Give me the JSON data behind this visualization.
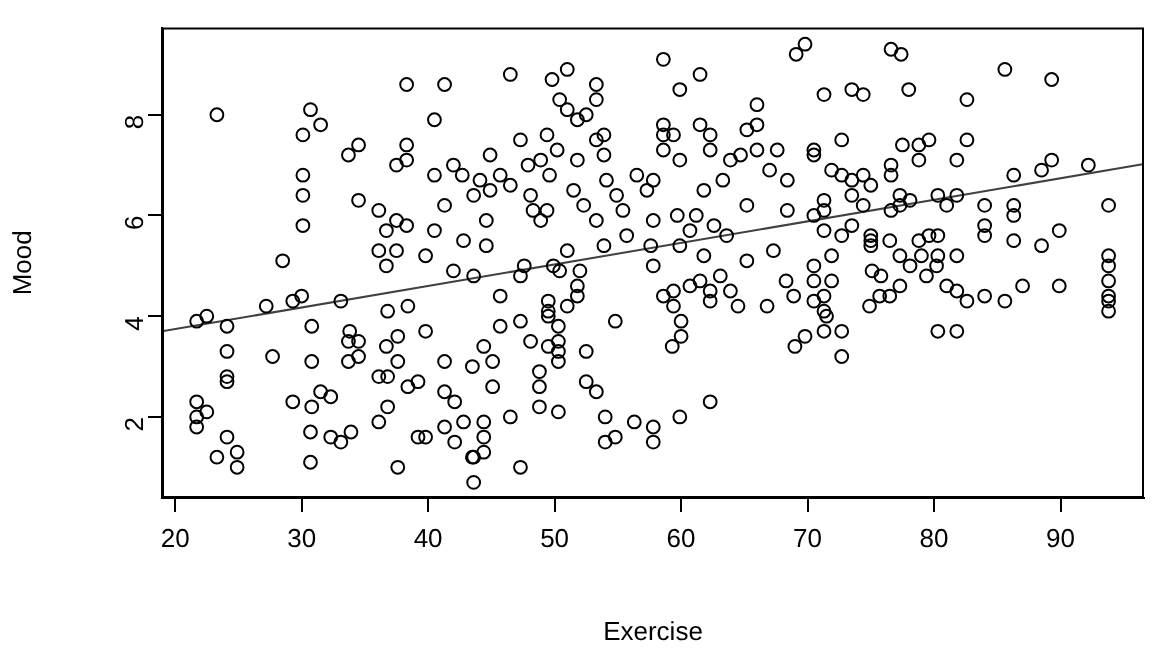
{
  "chart_data": {
    "type": "scatter",
    "xlabel": "Exercise",
    "ylabel": "Mood",
    "xlim": [
      18.96,
      96.6
    ],
    "ylim": [
      0.39,
      9.73
    ],
    "xticks": [
      20,
      30,
      40,
      50,
      60,
      70,
      80,
      90
    ],
    "yticks": [
      2,
      4,
      6,
      8
    ],
    "grid": false,
    "legend": false,
    "marker": "circle",
    "series": [
      {
        "color": "#000000",
        "x": [
          23.3,
          21.7,
          21.7,
          21.7,
          22.5,
          21.7,
          22.5,
          24.1,
          24.1,
          24.1,
          24.1,
          24.1,
          23.3,
          24.9,
          24.9,
          27.2,
          27.7,
          29.3,
          30.0,
          30.8,
          30.8,
          29.3,
          30.8,
          31.5,
          32.3,
          30.7,
          30.7,
          32.3,
          33.1,
          33.9,
          33.1,
          33.8,
          33.7,
          34.5,
          33.7,
          34.5,
          36.1,
          36.8,
          36.7,
          36.8,
          37.6,
          37.6,
          38.4,
          39.8,
          36.1,
          36.8,
          37.6,
          38.4,
          39.2,
          39.2,
          39.8,
          41.3,
          41.3,
          42.1,
          41.3,
          42.1,
          42.8,
          43.6,
          43.6,
          38.3,
          41.3,
          30.7,
          31.5,
          30.1,
          34.5,
          33.7,
          38.3,
          38.3,
          37.5,
          40.5,
          30.1,
          30.1,
          30.1,
          34.5,
          36.1,
          37.5,
          38.3,
          36.7,
          40.5,
          41.3,
          40.5,
          42.0,
          42.7,
          36.1,
          37.5,
          36.7,
          39.8,
          28.5,
          42.8,
          43.6,
          42.0,
          69.8,
          69.1,
          58.6,
          51.0,
          49.8,
          46.5,
          61.5,
          59.9,
          53.3,
          53.3,
          50.4,
          51.0,
          52.5,
          51.8,
          66.0,
          66.0,
          65.2,
          58.6,
          58.6,
          59.4,
          61.5,
          62.3,
          62.3,
          53.9,
          53.3,
          47.3,
          49.4,
          50.2,
          44.9,
          48.9,
          47.9,
          51.8,
          53.9,
          59.9,
          58.6,
          63.9,
          64.7,
          66.0,
          67.6,
          70.5,
          45.7,
          44.1,
          46.5,
          49.6,
          54.1,
          56.5,
          57.8,
          57.3,
          61.8,
          63.3,
          68.4,
          67.0,
          44.9,
          48.1,
          51.5,
          54.9,
          48.3,
          49.4,
          52.3,
          55.4,
          59.7,
          61.2,
          65.2,
          68.4,
          48.9,
          44.6,
          53.3,
          57.8,
          55.7,
          60.7,
          62.6,
          63.6,
          44.6,
          53.9,
          51.0,
          57.6,
          59.9,
          61.8,
          65.2,
          67.3,
          47.6,
          49.9,
          57.8,
          52.0,
          76.6,
          77.4,
          85.6,
          89.3,
          71.3,
          73.5,
          74.4,
          78.0,
          82.6,
          72.7,
          77.5,
          78.8,
          79.6,
          82.6,
          70.5,
          71.9,
          72.7,
          73.5,
          74.4,
          75.0,
          76.6,
          76.6,
          78.8,
          81.8,
          86.3,
          88.5,
          89.3,
          92.2,
          71.3,
          73.5,
          77.3,
          78.1,
          80.3,
          81.8,
          70.5,
          71.3,
          74.4,
          76.6,
          77.3,
          81.0,
          84.0,
          86.3,
          86.3,
          93.8,
          71.3,
          72.7,
          73.5,
          75.0,
          75.0,
          75.0,
          76.5,
          78.8,
          79.6,
          80.3,
          84.0,
          84.0,
          86.3,
          88.5,
          89.9,
          93.8,
          93.8,
          70.5,
          71.9,
          77.3,
          79.0,
          80.3,
          81.8,
          75.1,
          75.8,
          74.9,
          75.7,
          76.5,
          77.3,
          78.1,
          79.4,
          80.2,
          81.0,
          81.8,
          82.6,
          84.0,
          85.6,
          87.0,
          89.9,
          80.3,
          81.8,
          93.8,
          93.8,
          93.8,
          93.8,
          70.5,
          71.5,
          71.3,
          71.3,
          72.7,
          72.7,
          71.3,
          70.5,
          71.9,
          69.8,
          43.5,
          44.4,
          45.1,
          45.1,
          45.7,
          45.7,
          47.3,
          48.1,
          48.8,
          48.8,
          48.8,
          49.5,
          49.5,
          49.5,
          49.5,
          50.3,
          50.3,
          50.3,
          50.3,
          50.3,
          51.0,
          51.8,
          51.8,
          52.5,
          52.5,
          53.3,
          54.0,
          54.0,
          54.8,
          54.8,
          56.3,
          57.8,
          57.8,
          59.9,
          62.3,
          43.5,
          44.4,
          44.4,
          44.4,
          47.3,
          46.5,
          58.6,
          59.4,
          59.4,
          60.0,
          60.0,
          59.3,
          60.7,
          61.5,
          62.3,
          62.3,
          63.1,
          63.9,
          64.5,
          66.8,
          68.3,
          68.9,
          69.0,
          43.6,
          47.3,
          50.4
        ],
        "values": [
          8.0,
          2.3,
          2.0,
          1.8,
          2.1,
          3.9,
          4.0,
          3.8,
          3.3,
          2.8,
          2.7,
          1.6,
          1.2,
          1.3,
          1.0,
          4.2,
          3.2,
          4.3,
          4.4,
          3.8,
          3.1,
          2.3,
          2.2,
          2.5,
          2.4,
          1.7,
          1.1,
          1.6,
          1.5,
          1.7,
          4.3,
          3.7,
          3.5,
          3.5,
          3.1,
          3.2,
          2.8,
          2.8,
          3.4,
          4.1,
          3.6,
          3.1,
          4.2,
          3.7,
          1.9,
          2.2,
          1.0,
          2.6,
          2.7,
          1.6,
          1.6,
          3.1,
          2.5,
          2.3,
          1.8,
          1.5,
          1.9,
          1.2,
          0.7,
          8.6,
          8.6,
          8.1,
          7.8,
          7.6,
          7.4,
          7.2,
          7.4,
          7.1,
          7.0,
          7.9,
          6.8,
          6.4,
          5.8,
          6.3,
          6.1,
          5.9,
          5.8,
          5.7,
          5.7,
          6.2,
          6.8,
          7.0,
          6.8,
          5.3,
          5.3,
          5.0,
          5.2,
          5.1,
          5.5,
          6.4,
          4.9,
          9.4,
          9.2,
          9.1,
          8.9,
          8.7,
          8.8,
          8.8,
          8.5,
          8.6,
          8.3,
          8.3,
          8.1,
          8.0,
          7.9,
          8.2,
          7.8,
          7.7,
          7.8,
          7.6,
          7.6,
          7.8,
          7.6,
          7.3,
          7.6,
          7.5,
          7.5,
          7.6,
          7.3,
          7.2,
          7.1,
          7.0,
          7.1,
          7.2,
          7.1,
          7.3,
          7.1,
          7.2,
          7.3,
          7.3,
          7.2,
          6.8,
          6.7,
          6.6,
          6.8,
          6.7,
          6.8,
          6.7,
          6.5,
          6.5,
          6.7,
          6.7,
          6.9,
          6.5,
          6.4,
          6.5,
          6.4,
          6.1,
          6.1,
          6.2,
          6.1,
          6.0,
          6.0,
          6.2,
          6.1,
          5.9,
          5.9,
          5.9,
          5.9,
          5.6,
          5.7,
          5.8,
          5.6,
          5.4,
          5.4,
          5.3,
          5.4,
          5.4,
          5.2,
          5.1,
          5.3,
          5.0,
          5.0,
          5.0,
          4.9,
          9.3,
          9.2,
          8.9,
          8.7,
          8.4,
          8.5,
          8.4,
          8.5,
          8.3,
          7.5,
          7.4,
          7.4,
          7.5,
          7.5,
          7.3,
          6.9,
          6.8,
          6.7,
          6.8,
          6.6,
          7.0,
          6.8,
          7.1,
          7.1,
          6.8,
          6.9,
          7.1,
          7.0,
          6.3,
          6.4,
          6.4,
          6.3,
          6.4,
          6.4,
          6.0,
          6.1,
          6.2,
          6.1,
          6.2,
          6.2,
          6.2,
          6.2,
          6.0,
          6.2,
          5.7,
          5.6,
          5.8,
          5.6,
          5.5,
          5.4,
          5.5,
          5.5,
          5.6,
          5.6,
          5.8,
          5.6,
          5.5,
          5.4,
          5.7,
          5.2,
          5.0,
          5.0,
          5.2,
          5.2,
          5.2,
          5.2,
          5.2,
          4.9,
          4.8,
          4.2,
          4.4,
          4.4,
          4.6,
          5.0,
          4.8,
          5.0,
          4.6,
          4.5,
          4.3,
          4.4,
          4.3,
          4.6,
          4.6,
          3.7,
          3.7,
          4.7,
          4.4,
          4.3,
          4.1,
          4.3,
          4.0,
          4.1,
          3.7,
          3.7,
          3.2,
          4.4,
          4.7,
          4.7,
          3.6,
          3.0,
          3.4,
          3.1,
          2.6,
          3.8,
          4.4,
          3.9,
          3.5,
          2.9,
          2.6,
          2.2,
          4.3,
          4.1,
          4.0,
          3.4,
          3.8,
          3.5,
          3.3,
          3.1,
          2.1,
          4.2,
          4.6,
          4.4,
          3.3,
          2.7,
          2.5,
          2.0,
          1.5,
          1.6,
          3.9,
          1.9,
          1.8,
          1.5,
          2.0,
          2.3,
          1.2,
          1.3,
          1.6,
          1.9,
          1.0,
          2.0,
          4.4,
          4.5,
          4.2,
          3.9,
          3.6,
          3.4,
          4.6,
          4.7,
          4.5,
          4.3,
          4.8,
          4.5,
          4.2,
          4.2,
          4.7,
          4.4,
          3.4,
          4.8,
          4.8,
          4.9
        ]
      },
      {
        "type": "line",
        "color": "#404040",
        "marker": "none",
        "x": [
          18.96,
          96.6
        ],
        "values": [
          3.7,
          7.02
        ]
      }
    ]
  }
}
